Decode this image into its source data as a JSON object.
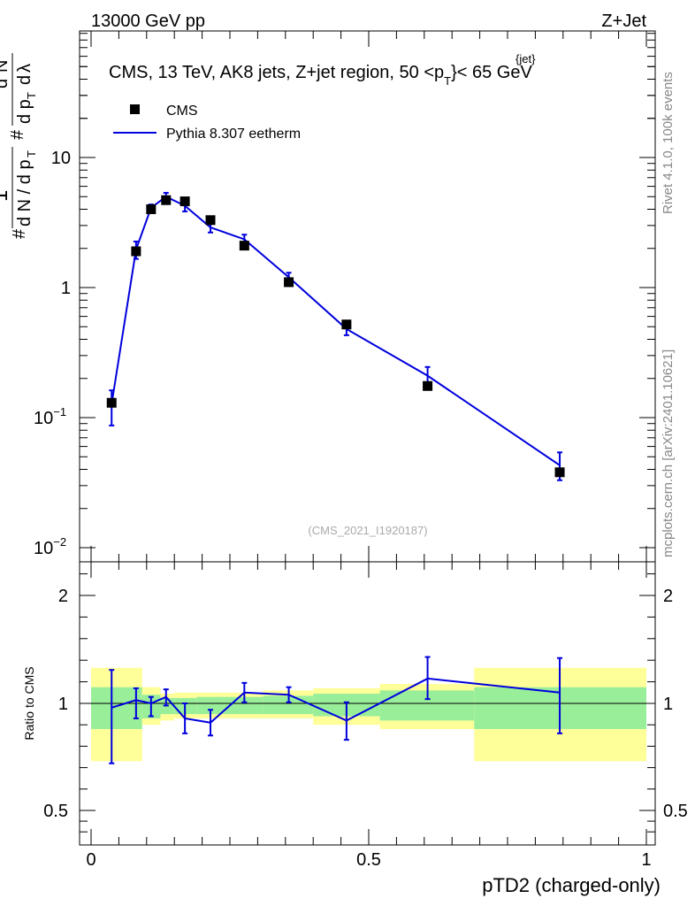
{
  "header": {
    "left": "13000 GeV pp",
    "right": "Z+Jet"
  },
  "side_labels": {
    "rivet": "Rivet 4.1.0,  100k events",
    "mcplots": "mcplots.cern.ch [arXiv:2401.10621]"
  },
  "chart_data": {
    "type": "scatter",
    "title_main": "CMS, 13 TeV, AK8 jets, Z+jet region, 50 <p",
    "title_sub": "T",
    "title_sup": "{jet}",
    "title_end": "}< 65 GeV",
    "analysis_id": "(CMS_2021_I1920187)",
    "xlabel": "pTD2 (charged-only)",
    "ylabel_top": "1/(dN/dpT) d2N/(dpT dλ)",
    "ylabel_ratio": "Ratio to CMS",
    "xlim": [
      0,
      1
    ],
    "ylim_main": [
      0.01,
      60
    ],
    "ylim_ratio": [
      0.4,
      2.4
    ],
    "x_ticks": [
      "0",
      "0.5",
      "1"
    ],
    "y_ticks_main": [
      {
        "base": "10",
        "exp": "−2",
        "value": 0.01
      },
      {
        "base": "10",
        "exp": "−1",
        "value": 0.1
      },
      {
        "base": "1",
        "exp": "",
        "value": 1
      },
      {
        "base": "10",
        "exp": "",
        "value": 10
      }
    ],
    "y_ticks_ratio": [
      "0.5",
      "1",
      "2"
    ],
    "legend": [
      {
        "label": "CMS",
        "marker": "square"
      },
      {
        "label": "Pythia 8.307 eetherm",
        "marker": "line",
        "color": "#0000dd"
      }
    ],
    "data": {
      "name": "CMS",
      "x": [
        0.037,
        0.081,
        0.108,
        0.135,
        0.169,
        0.215,
        0.276,
        0.356,
        0.46,
        0.606,
        0.844
      ],
      "y": [
        0.13,
        1.9,
        4.0,
        4.7,
        4.6,
        3.3,
        2.1,
        1.1,
        0.52,
        0.175,
        0.038
      ]
    },
    "mc": {
      "name": "Pythia 8.307 eetherm",
      "color": "#0000dd",
      "x": [
        0.037,
        0.081,
        0.108,
        0.135,
        0.169,
        0.215,
        0.276,
        0.356,
        0.46,
        0.606,
        0.844
      ],
      "y": [
        0.127,
        1.96,
        4.1,
        5.0,
        4.25,
        2.9,
        2.35,
        1.2,
        0.48,
        0.21,
        0.043
      ],
      "err_low": [
        0.04,
        0.3,
        0.25,
        0.35,
        0.4,
        0.25,
        0.2,
        0.1,
        0.05,
        0.03,
        0.01
      ],
      "err_high": [
        0.035,
        0.3,
        0.25,
        0.35,
        0.35,
        0.2,
        0.2,
        0.1,
        0.05,
        0.035,
        0.011
      ]
    },
    "ratio": {
      "x": [
        0.037,
        0.081,
        0.108,
        0.135,
        0.169,
        0.215,
        0.276,
        0.356,
        0.46,
        0.606,
        0.844
      ],
      "y": [
        0.98,
        1.03,
        1.0,
        1.06,
        0.93,
        0.91,
        1.1,
        1.08,
        0.92,
        1.23,
        1.1
      ],
      "err_low": [
        0.26,
        0.1,
        0.06,
        0.07,
        0.07,
        0.06,
        0.09,
        0.07,
        0.09,
        0.19,
        0.24
      ],
      "err_high": [
        0.33,
        0.11,
        0.06,
        0.07,
        0.07,
        0.06,
        0.09,
        0.07,
        0.09,
        0.2,
        0.32
      ]
    },
    "bands": {
      "edges": [
        0,
        0.092,
        0.125,
        0.15,
        0.19,
        0.24,
        0.31,
        0.4,
        0.52,
        0.69,
        1.0
      ],
      "stat_low": [
        0.88,
        0.93,
        0.95,
        0.95,
        0.95,
        0.95,
        0.95,
        0.94,
        0.92,
        0.88
      ],
      "stat_high": [
        1.15,
        1.08,
        1.05,
        1.05,
        1.06,
        1.06,
        1.07,
        1.09,
        1.12,
        1.15
      ],
      "syst_low": [
        0.73,
        0.9,
        0.92,
        0.93,
        0.93,
        0.93,
        0.93,
        0.9,
        0.88,
        0.73
      ],
      "syst_high": [
        1.33,
        1.15,
        1.09,
        1.1,
        1.1,
        1.1,
        1.12,
        1.14,
        1.18,
        1.33
      ]
    }
  }
}
